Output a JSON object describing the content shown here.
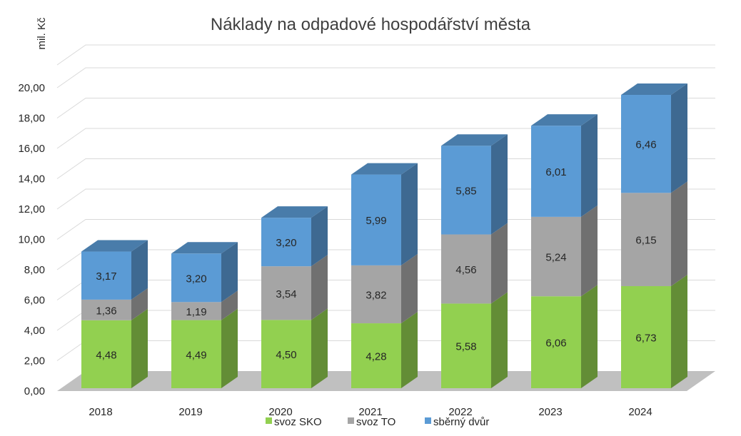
{
  "chart_data": {
    "type": "bar",
    "stacked": true,
    "style": "3d",
    "title": "Náklady na odpadové hospodářství města",
    "ylabel": "mil. Kč",
    "xlabel": "",
    "ylim": [
      0,
      20
    ],
    "ytick_labels": [
      "0,00",
      "2,00",
      "4,00",
      "6,00",
      "8,00",
      "10,00",
      "12,00",
      "14,00",
      "16,00",
      "18,00",
      "20,00"
    ],
    "grid": true,
    "legend_position": "bottom",
    "categories": [
      "2018",
      "2019",
      "2020",
      "2021",
      "2022",
      "2023",
      "2024"
    ],
    "series": [
      {
        "name": "svoz SKO",
        "color": "#92d050",
        "values": [
          4.48,
          4.49,
          4.5,
          4.28,
          5.58,
          6.06,
          6.73
        ],
        "labels": [
          "4,48",
          "4,49",
          "4,50",
          "4,28",
          "5,58",
          "6,06",
          "6,73"
        ]
      },
      {
        "name": "svoz TO",
        "color": "#a5a5a5",
        "values": [
          1.36,
          1.19,
          3.54,
          3.82,
          4.56,
          5.24,
          6.15
        ],
        "labels": [
          "1,36",
          "1,19",
          "3,54",
          "3,82",
          "4,56",
          "5,24",
          "6,15"
        ]
      },
      {
        "name": "sběrný dvůr",
        "color": "#5b9bd5",
        "values": [
          3.17,
          3.2,
          3.2,
          5.99,
          5.85,
          6.01,
          6.46
        ],
        "labels": [
          "3,17",
          "3,20",
          "3,20",
          "5,99",
          "5,85",
          "6,01",
          "6,46"
        ]
      }
    ]
  }
}
